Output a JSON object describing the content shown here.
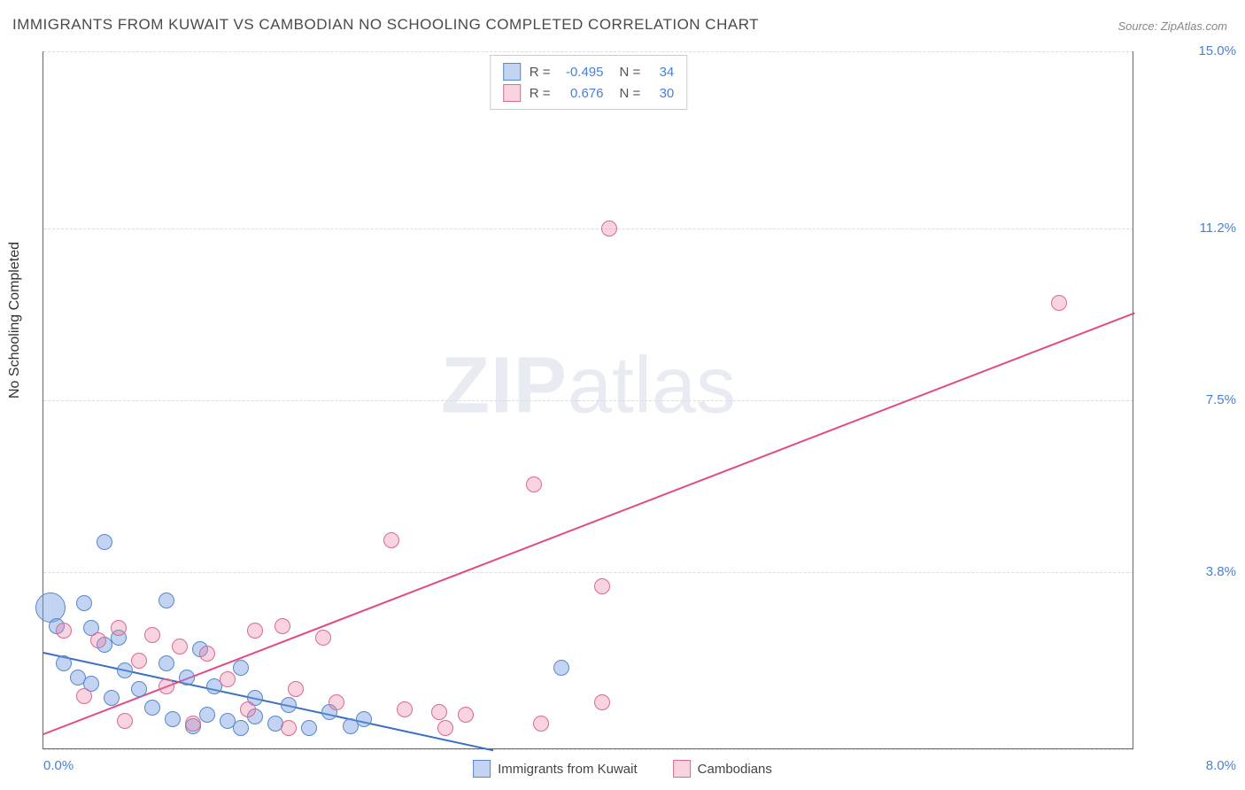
{
  "title": "IMMIGRANTS FROM KUWAIT VS CAMBODIAN NO SCHOOLING COMPLETED CORRELATION CHART",
  "source": "Source: ZipAtlas.com",
  "ylabel": "No Schooling Completed",
  "watermark_a": "ZIP",
  "watermark_b": "atlas",
  "chart": {
    "type": "scatter",
    "xlim": [
      0,
      8
    ],
    "ylim": [
      0,
      15
    ],
    "x_ticks": [
      {
        "v": 0,
        "label": "0.0%"
      },
      {
        "v": 8,
        "label": "8.0%"
      }
    ],
    "y_ticks": [
      {
        "v": 3.8,
        "label": "3.8%"
      },
      {
        "v": 7.5,
        "label": "7.5%"
      },
      {
        "v": 11.2,
        "label": "11.2%"
      },
      {
        "v": 15.0,
        "label": "15.0%"
      }
    ],
    "y_gridlines": [
      0,
      3.8,
      7.5,
      11.2,
      15.0
    ],
    "background_color": "#ffffff",
    "grid_color": "#dddddd",
    "axis_color": "#666666",
    "tick_label_color": "#4a7fd8",
    "tick_fontsize": 15,
    "title_color": "#4a4a4a",
    "title_fontsize": 17,
    "series": [
      {
        "name": "Immigrants from Kuwait",
        "marker_fill": "rgba(120,160,225,0.45)",
        "marker_stroke": "#5a87c9",
        "marker_r": 9,
        "trend": {
          "x0": 0,
          "y0": 2.1,
          "x1": 3.3,
          "y1": 0,
          "color": "#3b6fc0",
          "width": 2
        },
        "R": "-0.495",
        "N": "34",
        "points": [
          {
            "x": 0.45,
            "y": 4.45
          },
          {
            "x": 0.05,
            "y": 3.05,
            "r": 17
          },
          {
            "x": 0.1,
            "y": 2.65
          },
          {
            "x": 0.3,
            "y": 3.15
          },
          {
            "x": 0.35,
            "y": 2.6
          },
          {
            "x": 0.9,
            "y": 3.2
          },
          {
            "x": 0.45,
            "y": 2.25
          },
          {
            "x": 0.55,
            "y": 2.4
          },
          {
            "x": 0.15,
            "y": 1.85
          },
          {
            "x": 0.25,
            "y": 1.55
          },
          {
            "x": 0.35,
            "y": 1.4
          },
          {
            "x": 0.5,
            "y": 1.1
          },
          {
            "x": 0.6,
            "y": 1.7
          },
          {
            "x": 0.7,
            "y": 1.3
          },
          {
            "x": 0.8,
            "y": 0.9
          },
          {
            "x": 0.9,
            "y": 1.85
          },
          {
            "x": 0.95,
            "y": 0.65
          },
          {
            "x": 1.05,
            "y": 1.55
          },
          {
            "x": 1.1,
            "y": 0.5
          },
          {
            "x": 1.2,
            "y": 0.75
          },
          {
            "x": 1.25,
            "y": 1.35
          },
          {
            "x": 1.35,
            "y": 0.6
          },
          {
            "x": 1.45,
            "y": 0.45
          },
          {
            "x": 1.55,
            "y": 0.7
          },
          {
            "x": 1.55,
            "y": 1.1
          },
          {
            "x": 1.7,
            "y": 0.55
          },
          {
            "x": 1.8,
            "y": 0.95
          },
          {
            "x": 1.95,
            "y": 0.45
          },
          {
            "x": 2.1,
            "y": 0.8
          },
          {
            "x": 2.25,
            "y": 0.5
          },
          {
            "x": 2.35,
            "y": 0.65
          },
          {
            "x": 1.15,
            "y": 2.15
          },
          {
            "x": 1.45,
            "y": 1.75
          },
          {
            "x": 3.8,
            "y": 1.75
          }
        ]
      },
      {
        "name": "Cambodians",
        "marker_fill": "rgba(235,130,165,0.35)",
        "marker_stroke": "#d96a93",
        "marker_r": 9,
        "trend": {
          "x0": 0,
          "y0": 0.35,
          "x1": 8.0,
          "y1": 9.4,
          "color": "#e14b87",
          "width": 2
        },
        "R": "0.676",
        "N": "30",
        "points": [
          {
            "x": 0.15,
            "y": 2.55
          },
          {
            "x": 0.3,
            "y": 1.15
          },
          {
            "x": 0.4,
            "y": 2.35
          },
          {
            "x": 0.55,
            "y": 2.6
          },
          {
            "x": 0.6,
            "y": 0.6
          },
          {
            "x": 0.7,
            "y": 1.9
          },
          {
            "x": 0.8,
            "y": 2.45
          },
          {
            "x": 0.9,
            "y": 1.35
          },
          {
            "x": 1.0,
            "y": 2.2
          },
          {
            "x": 1.1,
            "y": 0.55
          },
          {
            "x": 1.2,
            "y": 2.05
          },
          {
            "x": 1.35,
            "y": 1.5
          },
          {
            "x": 1.5,
            "y": 0.85
          },
          {
            "x": 1.55,
            "y": 2.55
          },
          {
            "x": 1.75,
            "y": 2.65
          },
          {
            "x": 1.8,
            "y": 0.45
          },
          {
            "x": 1.85,
            "y": 1.3
          },
          {
            "x": 2.05,
            "y": 2.4
          },
          {
            "x": 2.15,
            "y": 1.0
          },
          {
            "x": 2.55,
            "y": 4.5
          },
          {
            "x": 2.65,
            "y": 0.85
          },
          {
            "x": 2.9,
            "y": 0.8
          },
          {
            "x": 2.95,
            "y": 0.45
          },
          {
            "x": 3.1,
            "y": 0.75
          },
          {
            "x": 3.6,
            "y": 5.7
          },
          {
            "x": 3.65,
            "y": 0.55
          },
          {
            "x": 4.1,
            "y": 3.5
          },
          {
            "x": 4.15,
            "y": 11.2
          },
          {
            "x": 4.1,
            "y": 1.0
          },
          {
            "x": 7.45,
            "y": 9.6
          }
        ]
      }
    ]
  },
  "stats_box": {
    "rows": [
      {
        "swatch_fill": "rgba(120,160,225,0.45)",
        "swatch_stroke": "#5a87c9",
        "R_label": "R =",
        "R": "-0.495",
        "N_label": "N =",
        "N": "34"
      },
      {
        "swatch_fill": "rgba(235,130,165,0.35)",
        "swatch_stroke": "#d96a93",
        "R_label": "R =",
        "R": "0.676",
        "N_label": "N =",
        "N": "30"
      }
    ]
  },
  "legend": {
    "items": [
      {
        "swatch_fill": "rgba(120,160,225,0.45)",
        "swatch_stroke": "#5a87c9",
        "label": "Immigrants from Kuwait"
      },
      {
        "swatch_fill": "rgba(235,130,165,0.35)",
        "swatch_stroke": "#d96a93",
        "label": "Cambodians"
      }
    ]
  }
}
